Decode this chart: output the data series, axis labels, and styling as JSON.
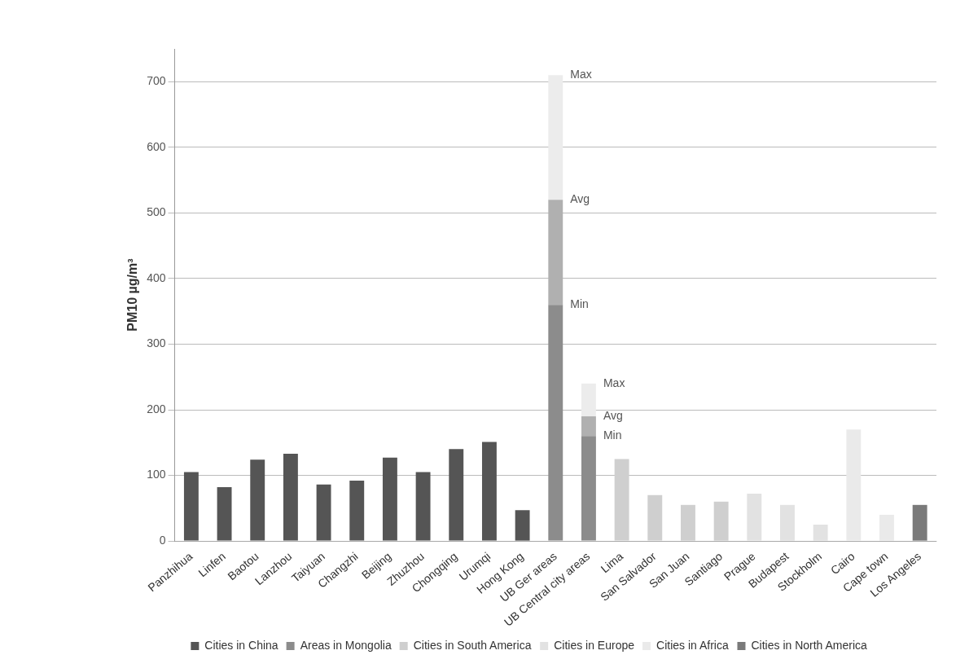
{
  "chart_data": {
    "type": "bar",
    "stacked": true,
    "ylabel": "PM10 µg/m³",
    "categories": [
      "Panzhihua",
      "Linfen",
      "Baotou",
      "Lanzhou",
      "Taiyuan",
      "Changzhi",
      "Beijing",
      "Zhuzhou",
      "Chongqing",
      "Urumqi",
      "Hong Kong",
      "UB Ger areas",
      "UB Central city areas",
      "Lima",
      "San Salvador",
      "San Juan",
      "Santiago",
      "Prague",
      "Budapest",
      "Stockholm",
      "Cairo",
      "Cape town",
      "Los Angeles"
    ],
    "series": [
      {
        "name": "Cities in China",
        "color": "#555555",
        "values": [
          105,
          82,
          124,
          133,
          86,
          92,
          127,
          105,
          140,
          151,
          47,
          null,
          null,
          null,
          null,
          null,
          null,
          null,
          null,
          null,
          null,
          null,
          null
        ]
      },
      {
        "name": "Areas in Mongolia",
        "color": "#8c8c8c",
        "values": [
          null,
          null,
          null,
          null,
          null,
          null,
          null,
          null,
          null,
          null,
          null,
          360,
          160,
          null,
          null,
          null,
          null,
          null,
          null,
          null,
          null,
          null,
          null
        ]
      },
      {
        "color": "#b0b0b0",
        "values": [
          null,
          null,
          null,
          null,
          null,
          null,
          null,
          null,
          null,
          null,
          null,
          160,
          30,
          null,
          null,
          null,
          null,
          null,
          null,
          null,
          null,
          null,
          null
        ]
      },
      {
        "color": "#ececec",
        "values": [
          null,
          null,
          null,
          null,
          null,
          null,
          null,
          null,
          null,
          null,
          null,
          190,
          50,
          null,
          null,
          null,
          null,
          null,
          null,
          null,
          null,
          null,
          null
        ]
      },
      {
        "name": "Cities in South America",
        "color": "#cfcfcf",
        "values": [
          null,
          null,
          null,
          null,
          null,
          null,
          null,
          null,
          null,
          null,
          null,
          null,
          null,
          125,
          70,
          55,
          60,
          null,
          null,
          null,
          null,
          null,
          null
        ]
      },
      {
        "name": "Cities in Europe",
        "color": "#e2e2e2",
        "values": [
          null,
          null,
          null,
          null,
          null,
          null,
          null,
          null,
          null,
          null,
          null,
          null,
          null,
          null,
          null,
          null,
          null,
          72,
          55,
          25,
          null,
          null,
          null
        ]
      },
      {
        "name": "Cities in Africa",
        "color": "#eaeaea",
        "values": [
          null,
          null,
          null,
          null,
          null,
          null,
          null,
          null,
          null,
          null,
          null,
          null,
          null,
          null,
          null,
          null,
          null,
          null,
          null,
          null,
          170,
          40,
          null
        ]
      },
      {
        "name": "Cities in North America",
        "color": "#7a7a7a",
        "values": [
          null,
          null,
          null,
          null,
          null,
          null,
          null,
          null,
          null,
          null,
          null,
          null,
          null,
          null,
          null,
          null,
          null,
          null,
          null,
          null,
          null,
          null,
          55
        ]
      }
    ],
    "ylim": [
      0,
      750
    ],
    "yticks": [
      0,
      100,
      200,
      300,
      400,
      500,
      600,
      700
    ],
    "grid": "y",
    "legend": "bottom",
    "annotations": [
      {
        "text": "Max",
        "x": "UB Ger areas",
        "y": 710
      },
      {
        "text": "Avg",
        "x": "UB Ger areas",
        "y": 520
      },
      {
        "text": "Min",
        "x": "UB Ger areas",
        "y": 360
      },
      {
        "text": "Max",
        "x": "UB Central city areas",
        "y": 240
      },
      {
        "text": "Avg",
        "x": "UB Central city areas",
        "y": 190
      },
      {
        "text": "Min",
        "x": "UB Central city areas",
        "y": 160
      }
    ]
  }
}
